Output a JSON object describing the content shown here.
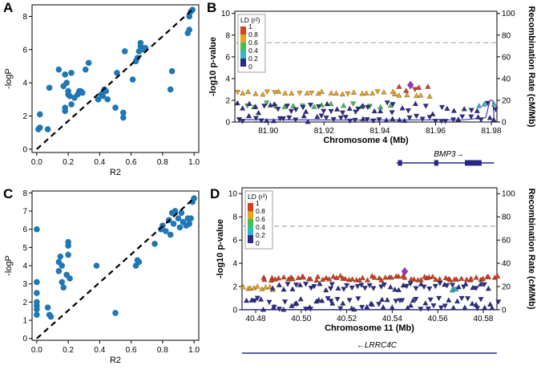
{
  "colors": {
    "scatter": "#1f77b4",
    "ld_purple": "#9932cc",
    "ld_bins": [
      "#d43f1c",
      "#e8a21e",
      "#3ec24e",
      "#33b5c6",
      "#2a2a8a"
    ],
    "gene": "#27278a",
    "recomb": "#3a3acf"
  },
  "panel_labels": {
    "a": "A",
    "b": "B",
    "c": "C",
    "d": "D"
  },
  "chart_data": [
    {
      "id": "A",
      "type": "scatter",
      "xlabel": "R2",
      "ylabel": "-logP",
      "xlim": [
        -0.03,
        1.03
      ],
      "ylim": [
        -0.2,
        8.7
      ],
      "xticks": [
        "0.0",
        "0.2",
        "0.4",
        "0.6",
        "0.8",
        "1.0"
      ],
      "xtick_values": [
        0,
        0.2,
        0.4,
        0.6,
        0.8,
        1.0
      ],
      "yticks": [
        "0",
        "2",
        "4",
        "6",
        "8"
      ],
      "ytick_values": [
        0,
        2,
        4,
        6,
        8
      ],
      "diagonal": [
        [
          0,
          0
        ],
        [
          1,
          8.5
        ]
      ],
      "points": [
        [
          0.01,
          1.2
        ],
        [
          0.02,
          1.3
        ],
        [
          0.02,
          2.1
        ],
        [
          0.07,
          1.2
        ],
        [
          0.08,
          3.7
        ],
        [
          0.14,
          4.8
        ],
        [
          0.17,
          3.8
        ],
        [
          0.18,
          2.5
        ],
        [
          0.18,
          2.3
        ],
        [
          0.18,
          4.5
        ],
        [
          0.19,
          4.0
        ],
        [
          0.2,
          3.5
        ],
        [
          0.2,
          3.3
        ],
        [
          0.21,
          3.2
        ],
        [
          0.22,
          2.7
        ],
        [
          0.22,
          4.6
        ],
        [
          0.24,
          3.1
        ],
        [
          0.26,
          3.3
        ],
        [
          0.27,
          3.5
        ],
        [
          0.28,
          3.5
        ],
        [
          0.29,
          3.4
        ],
        [
          0.31,
          4.8
        ],
        [
          0.33,
          5.2
        ],
        [
          0.39,
          3.0
        ],
        [
          0.41,
          3.3
        ],
        [
          0.42,
          3.2
        ],
        [
          0.43,
          3.6
        ],
        [
          0.44,
          3.5
        ],
        [
          0.45,
          3.0
        ],
        [
          0.5,
          2.5
        ],
        [
          0.51,
          4.6
        ],
        [
          0.55,
          1.9
        ],
        [
          0.55,
          2.2
        ],
        [
          0.56,
          5.9
        ],
        [
          0.61,
          4.2
        ],
        [
          0.63,
          5.3
        ],
        [
          0.64,
          5.5
        ],
        [
          0.65,
          5.9
        ],
        [
          0.66,
          6.2
        ],
        [
          0.66,
          6.4
        ],
        [
          0.68,
          6.0
        ],
        [
          0.69,
          6.1
        ],
        [
          0.85,
          3.6
        ],
        [
          0.86,
          4.7
        ],
        [
          0.96,
          7.0
        ],
        [
          0.97,
          7.2
        ],
        [
          0.97,
          8.0
        ],
        [
          0.98,
          8.3
        ],
        [
          0.99,
          8.4
        ]
      ]
    },
    {
      "id": "B",
      "type": "locuszoom",
      "xlabel": "Chromosome 4 (Mb)",
      "ylabel": "-log10 p-value",
      "y2label": "Recombination Rate (cM/Mb)",
      "xlim": [
        81.888,
        81.982
      ],
      "ylim": [
        0,
        10.2
      ],
      "xticks": [
        "81.90",
        "81.92",
        "81.94",
        "81.96",
        "81.98"
      ],
      "xtick_values": [
        81.9,
        81.92,
        81.94,
        81.96,
        81.98
      ],
      "yticks": [
        "0",
        "2",
        "4",
        "6",
        "8",
        "10"
      ],
      "y2ticks": [
        "0",
        "20",
        "40",
        "60",
        "80",
        "100"
      ],
      "threshold": 7.3,
      "legend_title": "LD (r²)",
      "legend_labels": [
        "1",
        "0.8",
        "0.6",
        "0.4",
        "0.2",
        "0"
      ],
      "lead": [
        81.951,
        3.4
      ],
      "bands": [
        {
          "bin": 1,
          "x": [
            81.889,
            81.944
          ],
          "y": 2.7,
          "n": 26,
          "jit": 0.15,
          "down": 0.2
        },
        {
          "bin": 1,
          "x": [
            81.945,
            81.958
          ],
          "y": 2.55,
          "n": 6,
          "jit": 0.2,
          "down": 0.2
        },
        {
          "bin": 0,
          "x": [
            81.947,
            81.957
          ],
          "y": 3.1,
          "n": 5,
          "jit": 0.25,
          "down": 0.1
        },
        {
          "bin": 2,
          "x": [
            81.892,
            81.944
          ],
          "y": 1.6,
          "n": 16,
          "jit": 0.2,
          "down": 0.3
        },
        {
          "bin": 3,
          "x": [
            81.975,
            81.981
          ],
          "y": 1.5,
          "n": 3,
          "jit": 0.2,
          "down": 0
        },
        {
          "bin": 4,
          "x": [
            81.889,
            81.944
          ],
          "y": 1.3,
          "n": 30,
          "jit": 0.5,
          "down": 0.5
        },
        {
          "bin": 4,
          "x": [
            81.945,
            81.981
          ],
          "y": 1.2,
          "n": 14,
          "jit": 0.6,
          "down": 0.5
        },
        {
          "bin": 4,
          "x": [
            81.889,
            81.981
          ],
          "y": 0.3,
          "n": 44,
          "jit": 0.3,
          "down": 0.5
        }
      ],
      "gene_label": "BMP3→",
      "gene_x": [
        81.946,
        81.981
      ],
      "exons": [
        [
          81.9465,
          81.948
        ],
        [
          81.9595,
          81.961
        ],
        [
          81.9705,
          81.9765
        ]
      ],
      "recomb": [
        [
          81.889,
          2.2
        ],
        [
          81.93,
          1.8
        ],
        [
          81.97,
          2.0
        ],
        [
          81.978,
          4.0
        ],
        [
          81.9795,
          20
        ],
        [
          81.9805,
          20
        ],
        [
          81.981,
          3
        ]
      ]
    },
    {
      "id": "C",
      "type": "scatter",
      "xlabel": "R2",
      "ylabel": "-logP",
      "xlim": [
        -0.03,
        1.03
      ],
      "ylim": [
        -0.1,
        8.1
      ],
      "xticks": [
        "0.0",
        "0.2",
        "0.4",
        "0.6",
        "0.8",
        "1.0"
      ],
      "xtick_values": [
        0,
        0.2,
        0.4,
        0.6,
        0.8,
        1.0
      ],
      "yticks": [
        "0",
        "1",
        "2",
        "3",
        "4",
        "5",
        "6",
        "7",
        "8"
      ],
      "ytick_values": [
        0,
        1,
        2,
        3,
        4,
        5,
        6,
        7,
        8
      ],
      "diagonal": [
        [
          0,
          0
        ],
        [
          1,
          7.7
        ]
      ],
      "points": [
        [
          0.0,
          6.0
        ],
        [
          0.0,
          3.1
        ],
        [
          0.0,
          2.5
        ],
        [
          0.0,
          2.0
        ],
        [
          0.0,
          1.8
        ],
        [
          0.0,
          1.6
        ],
        [
          0.0,
          1.3
        ],
        [
          0.07,
          1.7
        ],
        [
          0.08,
          1.3
        ],
        [
          0.09,
          1.2
        ],
        [
          0.14,
          4.2
        ],
        [
          0.14,
          3.7
        ],
        [
          0.15,
          4.5
        ],
        [
          0.16,
          4.0
        ],
        [
          0.16,
          3.1
        ],
        [
          0.17,
          2.8
        ],
        [
          0.19,
          3.5
        ],
        [
          0.2,
          5.3
        ],
        [
          0.2,
          5.1
        ],
        [
          0.2,
          4.6
        ],
        [
          0.21,
          3.3
        ],
        [
          0.38,
          4.0
        ],
        [
          0.5,
          1.4
        ],
        [
          0.63,
          4.0
        ],
        [
          0.64,
          4.3
        ],
        [
          0.65,
          4.2
        ],
        [
          0.75,
          5.2
        ],
        [
          0.79,
          6.0
        ],
        [
          0.8,
          6.2
        ],
        [
          0.82,
          5.9
        ],
        [
          0.84,
          6.5
        ],
        [
          0.85,
          5.7
        ],
        [
          0.86,
          6.9
        ],
        [
          0.87,
          6.3
        ],
        [
          0.88,
          7.0
        ],
        [
          0.9,
          6.6
        ],
        [
          0.91,
          6.1
        ],
        [
          0.92,
          6.9
        ],
        [
          0.93,
          6.4
        ],
        [
          0.95,
          6.2
        ],
        [
          0.96,
          6.6
        ],
        [
          0.97,
          6.3
        ],
        [
          0.98,
          6.6
        ],
        [
          0.99,
          7.5
        ],
        [
          1.0,
          7.7
        ]
      ]
    },
    {
      "id": "D",
      "type": "locuszoom",
      "xlabel": "Chromosome 11 (Mb)",
      "ylabel": "-log10 p-value",
      "y2label": "Recombination Rate (cM/Mb)",
      "xlim": [
        40.474,
        40.586
      ],
      "ylim": [
        0,
        10.5
      ],
      "xticks": [
        "40.48",
        "40.50",
        "40.52",
        "40.54",
        "40.56",
        "40.58"
      ],
      "xtick_values": [
        40.48,
        40.5,
        40.52,
        40.54,
        40.56,
        40.58
      ],
      "yticks": [
        "0",
        "2",
        "4",
        "6",
        "8",
        "10"
      ],
      "y2ticks": [
        "0",
        "20",
        "40",
        "60",
        "80",
        "100"
      ],
      "threshold": 7.2,
      "legend_title": "LD (r²)",
      "legend_labels": [
        "1",
        "0.8",
        "0.6",
        "0.4",
        "0.2",
        "0"
      ],
      "lead": [
        40.5455,
        3.3
      ],
      "bands": [
        {
          "bin": 1,
          "x": [
            40.475,
            40.488
          ],
          "y": 1.9,
          "n": 9,
          "jit": 0.15,
          "down": 0
        },
        {
          "bin": 0,
          "x": [
            40.483,
            40.586
          ],
          "y": 2.75,
          "n": 68,
          "jit": 0.2,
          "down": 0
        },
        {
          "bin": 3,
          "x": [
            40.566,
            40.568
          ],
          "y": 1.9,
          "n": 3,
          "jit": 0.2,
          "down": 0
        },
        {
          "bin": 4,
          "x": [
            40.488,
            40.583
          ],
          "y": 2.0,
          "n": 48,
          "jit": 0.3,
          "down": 0.6
        },
        {
          "bin": 4,
          "x": [
            40.476,
            40.586
          ],
          "y": 0.5,
          "n": 70,
          "jit": 0.5,
          "down": 0.5
        }
      ],
      "gene_label": "←LRRC4C",
      "gene_x": [
        40.474,
        40.586
      ],
      "exons": [],
      "recomb": [
        [
          40.474,
          0.3
        ],
        [
          40.586,
          0.3
        ]
      ]
    }
  ]
}
